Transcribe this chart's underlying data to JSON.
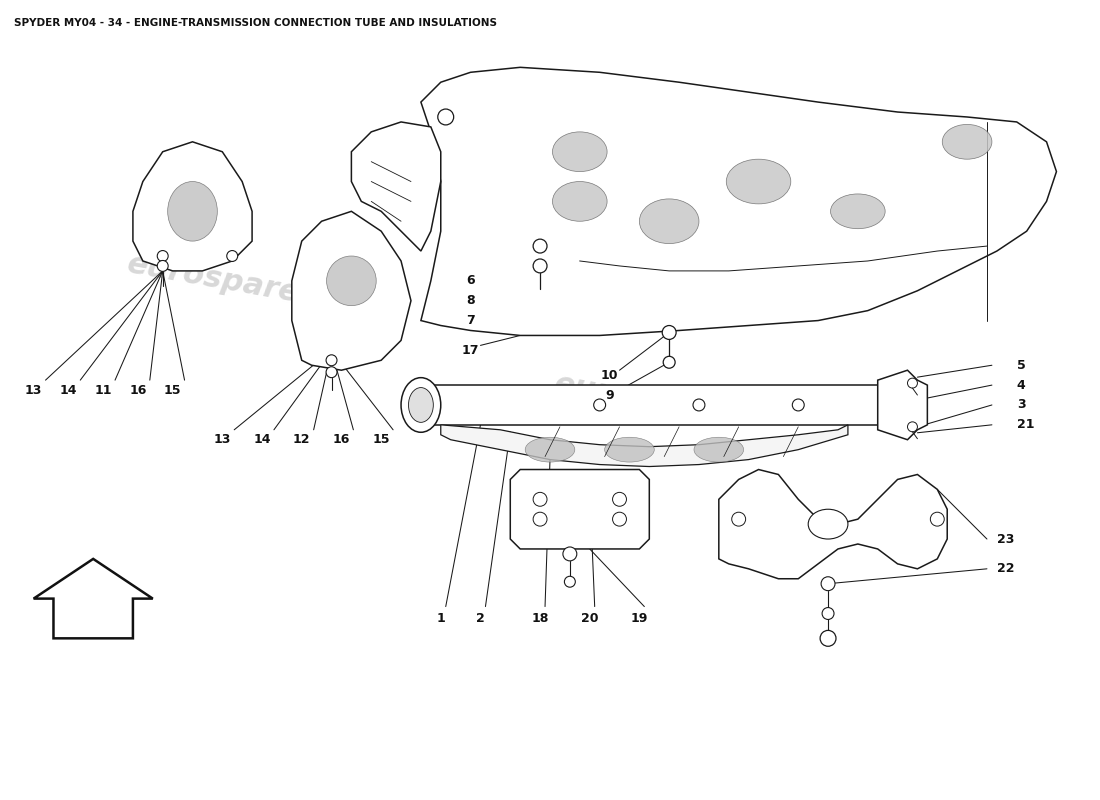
{
  "title": "SPYDER MY04 - 34 - ENGINE-TRANSMISSION CONNECTION TUBE AND INSULATIONS",
  "title_fontsize": 7.5,
  "bg_color": "#ffffff",
  "watermark_text": "eurospares",
  "watermark_color": "#d8d8d8",
  "label_fontsize": 9,
  "label_fontweight": "bold",
  "line_color": "#1a1a1a",
  "lw": 1.1
}
